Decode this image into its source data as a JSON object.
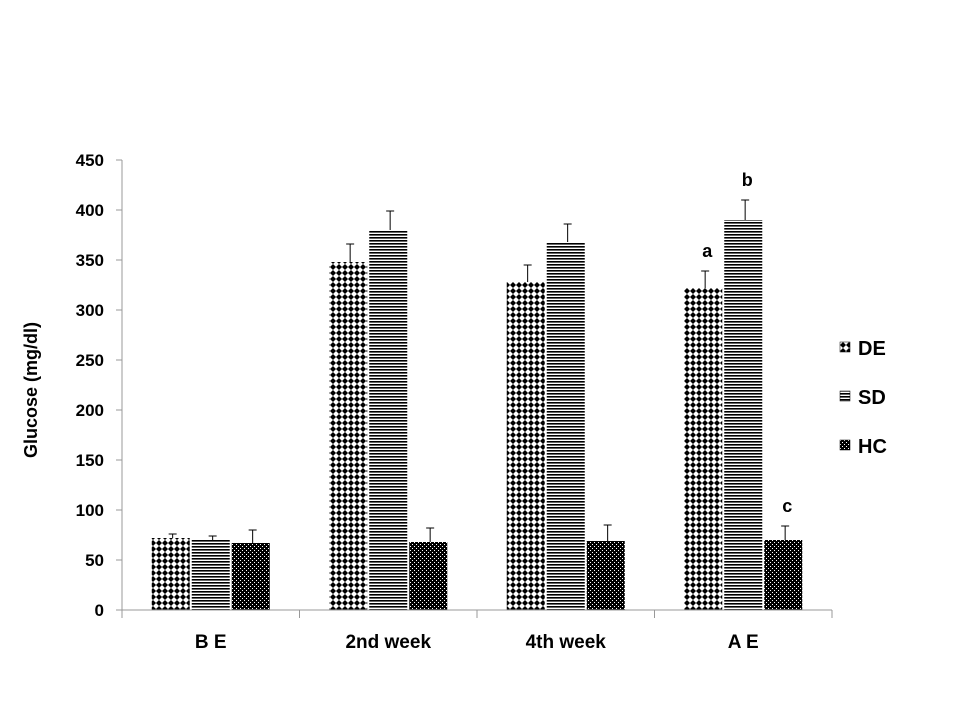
{
  "chart_data": {
    "type": "bar",
    "title": "",
    "xlabel": "",
    "ylabel": "Glucose (mg/dl)",
    "ylim": [
      0,
      450
    ],
    "yticks": [
      0,
      50,
      100,
      150,
      200,
      250,
      300,
      350,
      400,
      450
    ],
    "categories": [
      "B E",
      "2nd week",
      "4th week",
      "A E"
    ],
    "series": [
      {
        "name": "DE",
        "values": [
          72,
          348,
          328,
          322
        ],
        "errors": [
          4,
          18,
          17,
          17
        ]
      },
      {
        "name": "SD",
        "values": [
          70,
          380,
          368,
          390
        ],
        "errors": [
          4,
          19,
          18,
          20
        ]
      },
      {
        "name": "HC",
        "values": [
          67,
          68,
          69,
          70
        ],
        "errors": [
          13,
          14,
          16,
          14
        ]
      }
    ],
    "annotations": [
      {
        "text": "a",
        "category": "A E",
        "series": "DE"
      },
      {
        "text": "b",
        "category": "A E",
        "series": "SD"
      },
      {
        "text": "c",
        "category": "A E",
        "series": "HC"
      }
    ],
    "legend": {
      "position": "right"
    },
    "grid": false
  }
}
